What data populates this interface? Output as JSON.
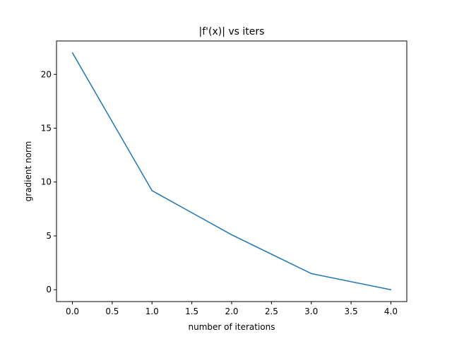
{
  "chart_data": {
    "type": "line",
    "title": "|f'(x)| vs iters",
    "xlabel": "number of iterations",
    "ylabel": "gradient norm",
    "xlim": [
      -0.2,
      4.2
    ],
    "ylim": [
      -1.1,
      23.1
    ],
    "xticks": [
      0.0,
      0.5,
      1.0,
      1.5,
      2.0,
      2.5,
      3.0,
      3.5,
      4.0
    ],
    "xtick_labels": [
      "0.0",
      "0.5",
      "1.0",
      "1.5",
      "2.0",
      "2.5",
      "3.0",
      "3.5",
      "4.0"
    ],
    "yticks": [
      0,
      5,
      10,
      15,
      20
    ],
    "ytick_labels": [
      "0",
      "5",
      "10",
      "15",
      "20"
    ],
    "grid": false,
    "series": [
      {
        "color": "#1f77b4",
        "x": [
          0,
          1,
          2,
          3,
          4
        ],
        "y": [
          22.0,
          9.2,
          5.1,
          1.5,
          0.0
        ]
      }
    ]
  }
}
